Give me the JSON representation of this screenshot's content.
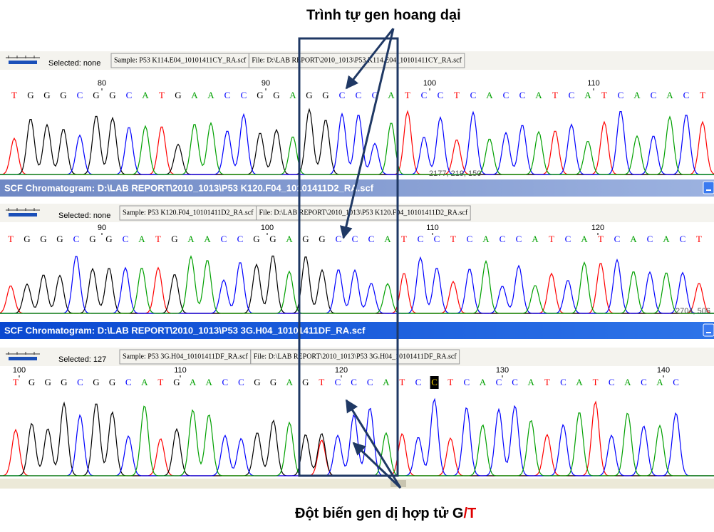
{
  "annotations": {
    "top": "Trình tự gen hoang dại",
    "bottom": "Đột biến gen dị hợp tử G",
    "bottom_mutant": "/T"
  },
  "base_colors": {
    "A": "#00a000",
    "C": "#0000ff",
    "G": "#000000",
    "T": "#ff0000"
  },
  "panels": [
    {
      "selected": "Selected: none",
      "sample": "Sample: P53 K114.E04_10101411CY_RA.scf",
      "file": "File: D:\\LAB REPORT\\2010_1013\\P53 K114.E04_10101411CY_RA.scf",
      "ruler": [
        80,
        90,
        100,
        110
      ],
      "bases": [
        "T",
        "G",
        "G",
        "G",
        "C",
        "G",
        "G",
        "C",
        "A",
        "T",
        "G",
        "A",
        "A",
        "C",
        "C",
        "G",
        "G",
        "A",
        "G",
        "G",
        "C",
        "C",
        "C",
        "A",
        "T",
        "C",
        "C",
        "T",
        "C",
        "A",
        "C",
        "C",
        "A",
        "T",
        "C",
        "A",
        "T",
        "C",
        "A",
        "C",
        "A",
        "C",
        "T"
      ],
      "readout": "2177, 219, 150"
    },
    {
      "title": "SCF Chromatogram: D:\\LAB REPORT\\2010_1013\\P53 K120.F04_10101411D2_RA.scf",
      "selected": "Selected: none",
      "sample": "Sample: P53 K120.F04_10101411D2_RA.scf",
      "file": "File: D:\\LAB REPORT\\2010_1013\\P53 K120.F04_10101411D2_RA.scf",
      "ruler": [
        90,
        100,
        110,
        120
      ],
      "bases": [
        "T",
        "G",
        "G",
        "G",
        "C",
        "G",
        "G",
        "C",
        "A",
        "T",
        "G",
        "A",
        "A",
        "C",
        "C",
        "G",
        "G",
        "A",
        "G",
        "G",
        "C",
        "C",
        "C",
        "A",
        "T",
        "C",
        "C",
        "T",
        "C",
        "A",
        "C",
        "C",
        "A",
        "T",
        "C",
        "A",
        "T",
        "C",
        "A",
        "C",
        "A",
        "C",
        "T"
      ],
      "readout": "2704, 506"
    },
    {
      "title": "SCF Chromatogram: D:\\LAB REPORT\\2010_1013\\P53 3G.H04_10101411DF_RA.scf",
      "selected": "Selected: 127",
      "sample": "Sample: P53 3G.H04_10101411DF_RA.scf",
      "file": "File: D:\\LAB REPORT\\2010_1013\\P53 3G.H04_10101411DF_RA.scf",
      "ruler": [
        100,
        110,
        120,
        130,
        140
      ],
      "bases": [
        "T",
        "G",
        "G",
        "G",
        "C",
        "G",
        "G",
        "C",
        "A",
        "T",
        "G",
        "A",
        "A",
        "C",
        "C",
        "G",
        "G",
        "A",
        "G",
        "T",
        "C",
        "C",
        "C",
        "A",
        "T",
        "C",
        "C",
        "T",
        "C",
        "A",
        "C",
        "C",
        "A",
        "T",
        "C",
        "A",
        "T",
        "C",
        "A",
        "C",
        "A",
        "C"
      ],
      "highlighted_base": 26
    }
  ]
}
